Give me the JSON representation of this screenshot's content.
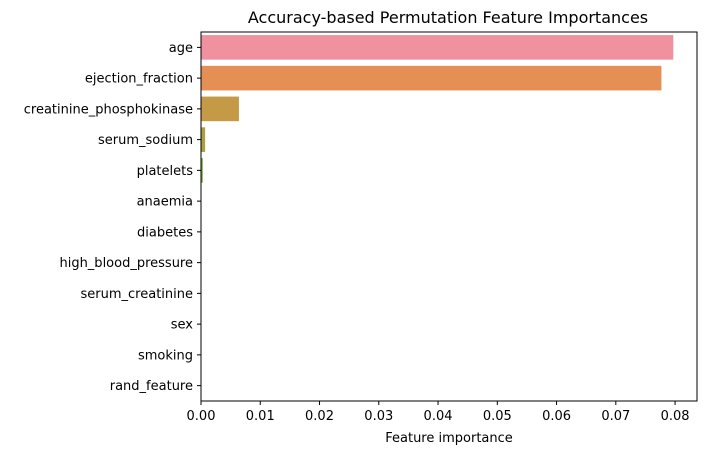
{
  "chart_data": {
    "type": "bar",
    "orientation": "horizontal",
    "title": "Accuracy-based Permutation Feature Importances",
    "xlabel": "Feature importance",
    "ylabel": "",
    "xlim": [
      0,
      0.0837
    ],
    "xticks": [
      "0.00",
      "0.01",
      "0.02",
      "0.03",
      "0.04",
      "0.05",
      "0.06",
      "0.07",
      "0.08"
    ],
    "grid": false,
    "categories": [
      "age",
      "ejection_fraction",
      "creatinine_phosphokinase",
      "serum_sodium",
      "platelets",
      "anaemia",
      "diabetes",
      "high_blood_pressure",
      "serum_creatinine",
      "sex",
      "smoking",
      "rand_feature"
    ],
    "values": [
      0.0797,
      0.0777,
      0.0064,
      0.0007,
      0.0003,
      0,
      0,
      0,
      0,
      0,
      0,
      0
    ],
    "colors": [
      "#f0919f",
      "#e68f55",
      "#c49a47",
      "#a9a042",
      "#7fa93f",
      "#44a849",
      "#42ac84",
      "#44a89e",
      "#45a4b2",
      "#5aa4d6",
      "#a99bea",
      "#e88fd8"
    ]
  }
}
